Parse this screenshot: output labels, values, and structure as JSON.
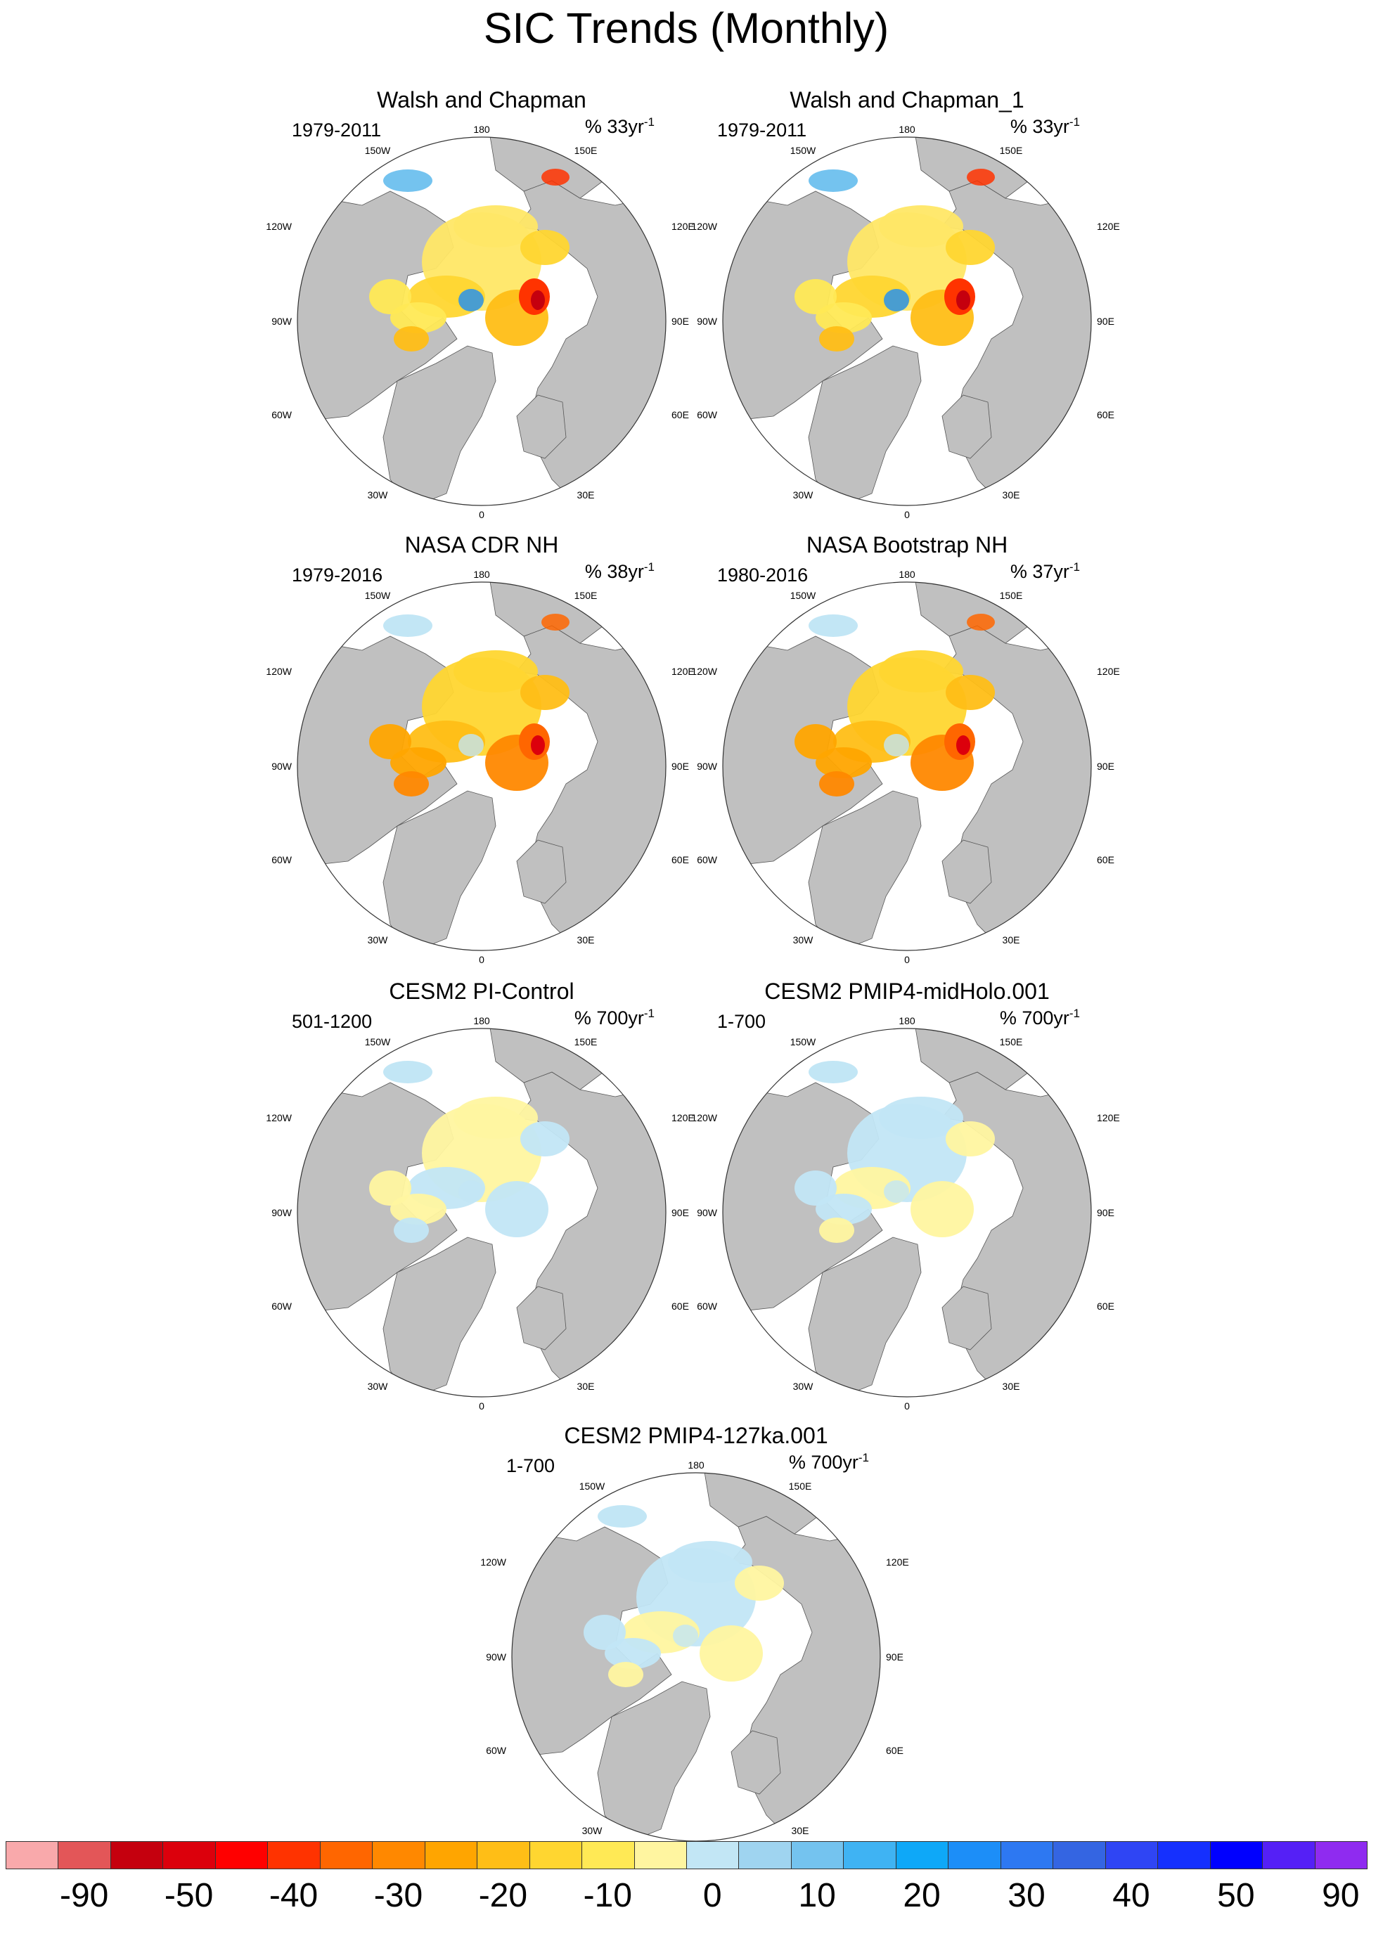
{
  "title": "SIC Trends (Monthly)",
  "panels": [
    {
      "title": "Walsh and Chapman",
      "range": "1979-2011",
      "unit": "% 33yr",
      "style": "obs1"
    },
    {
      "title": "Walsh and Chapman_1",
      "range": "1979-2011",
      "unit": "% 33yr",
      "style": "obs1"
    },
    {
      "title": "NASA CDR NH",
      "range": "1979-2016",
      "unit": "% 38yr",
      "style": "obs2"
    },
    {
      "title": "NASA Bootstrap NH",
      "range": "1980-2016",
      "unit": "% 37yr",
      "style": "obs2"
    },
    {
      "title": "CESM2 PI-Control",
      "range": "501-1200",
      "unit": "% 700yr",
      "style": "model1"
    },
    {
      "title": "CESM2 PMIP4-midHolo.001",
      "range": "1-700",
      "unit": "% 700yr",
      "style": "model2"
    },
    {
      "title": "CESM2 PMIP4-127ka.001",
      "range": "1-700",
      "unit": "% 700yr",
      "style": "model3"
    }
  ],
  "unit_superscript": "-1",
  "map_labels": {
    "top": "180",
    "bottom": "0",
    "left_upper": "120W",
    "left_mid": "90W",
    "left_lower": "60W",
    "right_upper": "120E",
    "right_mid": "90E",
    "right_lower": "60E",
    "top_left": "150W",
    "top_right": "150E",
    "bottom_left": "30W",
    "bottom_right": "30E"
  },
  "colorbar": {
    "colors": [
      "#f9a9ab",
      "#e35658",
      "#c5000e",
      "#dc000c",
      "#ff0000",
      "#ff3300",
      "#ff6600",
      "#ff8800",
      "#ffa500",
      "#ffbe16",
      "#ffd630",
      "#ffe955",
      "#fff5a0",
      "#c2e6f5",
      "#9fd4f0",
      "#74c3ef",
      "#3fb3f3",
      "#0ea8f8",
      "#1c8ef8",
      "#2d78f2",
      "#3465e2",
      "#2f45f4",
      "#1530fe",
      "#0000ff",
      "#5520f6",
      "#8f2bf0"
    ],
    "labels": [
      "-90",
      "-50",
      "-40",
      "-30",
      "-20",
      "-10",
      "0",
      "10",
      "20",
      "30",
      "40",
      "50",
      "90"
    ]
  },
  "legend_colors": {
    "land": "#c0c0c0",
    "ocean": "#ffffff"
  }
}
